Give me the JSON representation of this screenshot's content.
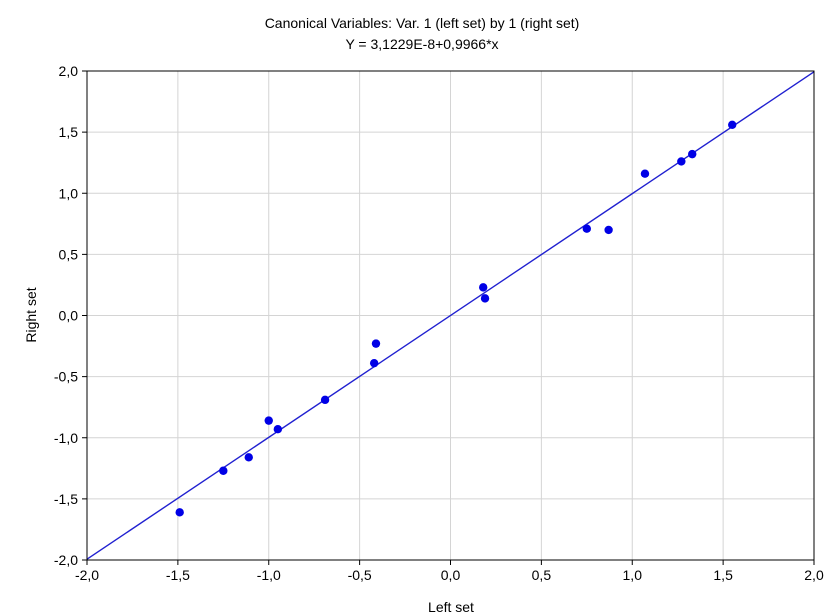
{
  "chart_data": {
    "type": "scatter",
    "title": "Canonical Variables: Var.   1 (left set) by   1 (right set)",
    "subtitle": "Y = 3,1229E-8+0,9966*x",
    "xlabel": "Left set",
    "ylabel": "Right set",
    "xlim": [
      -2.0,
      2.0
    ],
    "ylim": [
      -2.0,
      2.0
    ],
    "xticks": [
      -2.0,
      -1.5,
      -1.0,
      -0.5,
      0.0,
      0.5,
      1.0,
      1.5,
      2.0
    ],
    "yticks": [
      -2.0,
      -1.5,
      -1.0,
      -0.5,
      0.0,
      0.5,
      1.0,
      1.5,
      2.0
    ],
    "xtick_labels": [
      "-2,0",
      "-1,5",
      "-1,0",
      "-0,5",
      "0,0",
      "0,5",
      "1,0",
      "1,5",
      "2,0"
    ],
    "ytick_labels": [
      "-2,0",
      "-1,5",
      "-1,0",
      "-0,5",
      "0,0",
      "0,5",
      "1,0",
      "1,5",
      "2,0"
    ],
    "grid": true,
    "points": [
      {
        "x": -1.49,
        "y": -1.61
      },
      {
        "x": -1.25,
        "y": -1.27
      },
      {
        "x": -1.11,
        "y": -1.16
      },
      {
        "x": -1.0,
        "y": -0.86
      },
      {
        "x": -0.95,
        "y": -0.93
      },
      {
        "x": -0.69,
        "y": -0.69
      },
      {
        "x": -0.42,
        "y": -0.39
      },
      {
        "x": -0.41,
        "y": -0.23
      },
      {
        "x": 0.18,
        "y": 0.23
      },
      {
        "x": 0.19,
        "y": 0.14
      },
      {
        "x": 0.75,
        "y": 0.71
      },
      {
        "x": 0.87,
        "y": 0.7
      },
      {
        "x": 1.07,
        "y": 1.16
      },
      {
        "x": 1.27,
        "y": 1.26
      },
      {
        "x": 1.33,
        "y": 1.32
      },
      {
        "x": 1.55,
        "y": 1.56
      }
    ],
    "fit_line": {
      "intercept": 3.1229e-08,
      "slope": 0.9966
    },
    "colors": {
      "points": "#0000e6",
      "fit_line": "#2020d0",
      "grid": "#d4d4d4",
      "axes": "#000000"
    }
  }
}
